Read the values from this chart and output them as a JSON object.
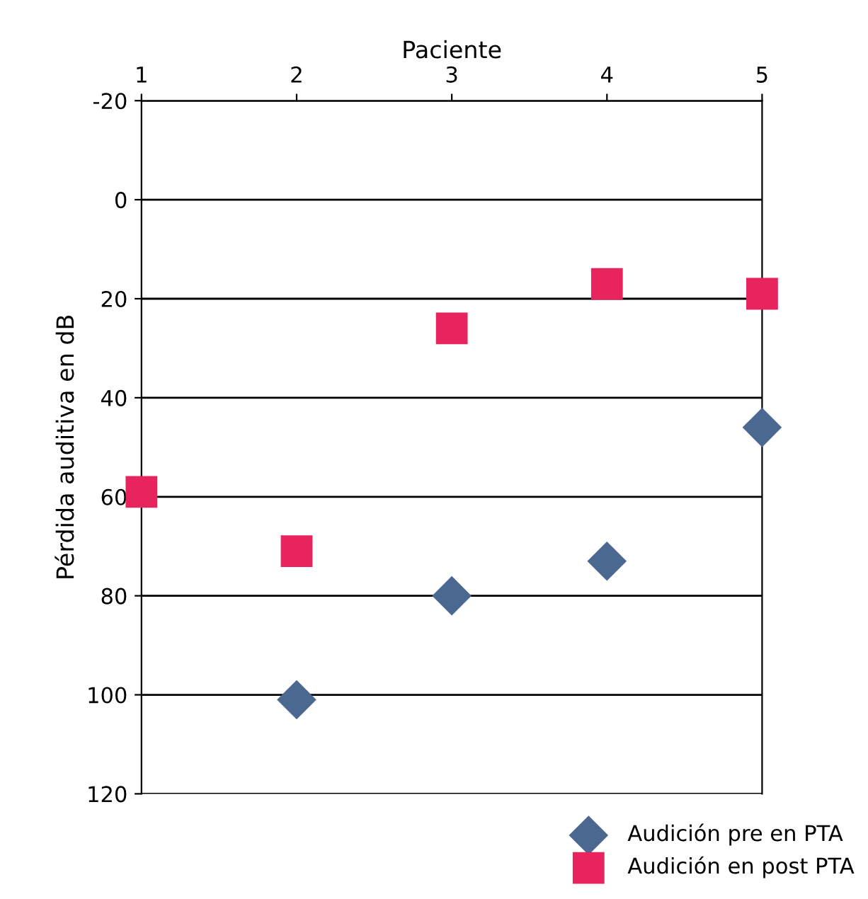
{
  "chart_data": {
    "type": "scatter",
    "xlabel": "Paciente",
    "ylabel": "Pérdida auditiva en dB",
    "x": [
      1,
      2,
      3,
      4,
      5
    ],
    "xlim": [
      1,
      5
    ],
    "xticks": [
      1,
      2,
      3,
      4,
      5
    ],
    "ylim": [
      120,
      -20
    ],
    "yticks": [
      -20,
      0,
      20,
      40,
      60,
      80,
      100,
      120
    ],
    "grid": "y",
    "legend": "bottom right",
    "series": [
      {
        "name": "Audición pre en PTA",
        "color": "#4a6890",
        "marker": "diamond",
        "values": [
          null,
          101,
          80,
          73,
          46
        ]
      },
      {
        "name": "Audición en post PTA",
        "color": "#e8245f",
        "marker": "square",
        "values": [
          59,
          71,
          26,
          17,
          19
        ]
      }
    ]
  }
}
